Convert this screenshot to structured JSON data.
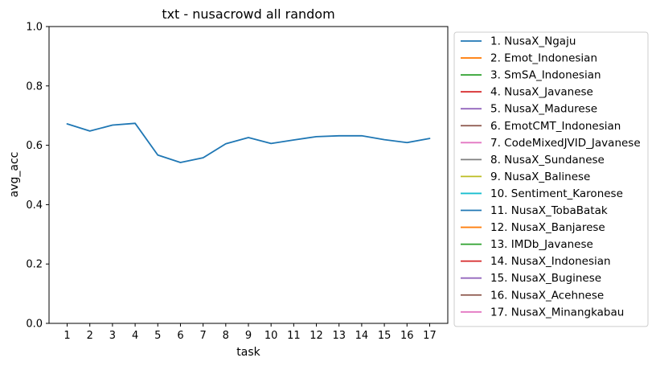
{
  "chart_data": {
    "type": "line",
    "title": "txt - nusacrowd all random",
    "xlabel": "task",
    "ylabel": "avg_acc",
    "xlim": [
      0.2,
      17.8
    ],
    "ylim": [
      0.0,
      1.0
    ],
    "x_ticks": [
      1,
      2,
      3,
      4,
      5,
      6,
      7,
      8,
      9,
      10,
      11,
      12,
      13,
      14,
      15,
      16,
      17
    ],
    "y_ticks": [
      0.0,
      0.2,
      0.4,
      0.6,
      0.8,
      1.0
    ],
    "y_tick_labels": [
      "0.0",
      "0.2",
      "0.4",
      "0.6",
      "0.8",
      "1.0"
    ],
    "grid": false,
    "legend_placement": "outside right",
    "series": [
      {
        "name": "1. NusaX_Ngaju",
        "color": "#1f77b4",
        "x": [
          1,
          2,
          3,
          4,
          5,
          6,
          7,
          8,
          9,
          10,
          11,
          12,
          13,
          14,
          15,
          16,
          17
        ],
        "values": [
          0.672,
          0.648,
          0.668,
          0.674,
          0.567,
          0.542,
          0.558,
          0.605,
          0.626,
          0.606,
          0.618,
          0.629,
          0.632,
          0.632,
          0.619,
          0.609,
          0.623
        ]
      },
      {
        "name": "2. Emot_Indonesian",
        "color": "#ff7f0e",
        "x": [],
        "values": []
      },
      {
        "name": "3. SmSA_Indonesian",
        "color": "#2ca02c",
        "x": [],
        "values": []
      },
      {
        "name": "4. NusaX_Javanese",
        "color": "#d62728",
        "x": [],
        "values": []
      },
      {
        "name": "5. NusaX_Madurese",
        "color": "#9467bd",
        "x": [],
        "values": []
      },
      {
        "name": "6. EmotCMT_Indonesian",
        "color": "#8c564b",
        "x": [],
        "values": []
      },
      {
        "name": "7. CodeMixedJVID_Javanese",
        "color": "#e377c2",
        "x": [],
        "values": []
      },
      {
        "name": "8. NusaX_Sundanese",
        "color": "#7f7f7f",
        "x": [],
        "values": []
      },
      {
        "name": "9. NusaX_Balinese",
        "color": "#bcbd22",
        "x": [],
        "values": []
      },
      {
        "name": "10. Sentiment_Karonese",
        "color": "#17becf",
        "x": [],
        "values": []
      },
      {
        "name": "11. NusaX_TobaBatak",
        "color": "#1f77b4",
        "x": [],
        "values": []
      },
      {
        "name": "12. NusaX_Banjarese",
        "color": "#ff7f0e",
        "x": [],
        "values": []
      },
      {
        "name": "13. IMDb_Javanese",
        "color": "#2ca02c",
        "x": [],
        "values": []
      },
      {
        "name": "14. NusaX_Indonesian",
        "color": "#d62728",
        "x": [],
        "values": []
      },
      {
        "name": "15. NusaX_Buginese",
        "color": "#9467bd",
        "x": [],
        "values": []
      },
      {
        "name": "16. NusaX_Acehnese",
        "color": "#8c564b",
        "x": [],
        "values": []
      },
      {
        "name": "17. NusaX_Minangkabau",
        "color": "#e377c2",
        "x": [],
        "values": []
      }
    ]
  }
}
